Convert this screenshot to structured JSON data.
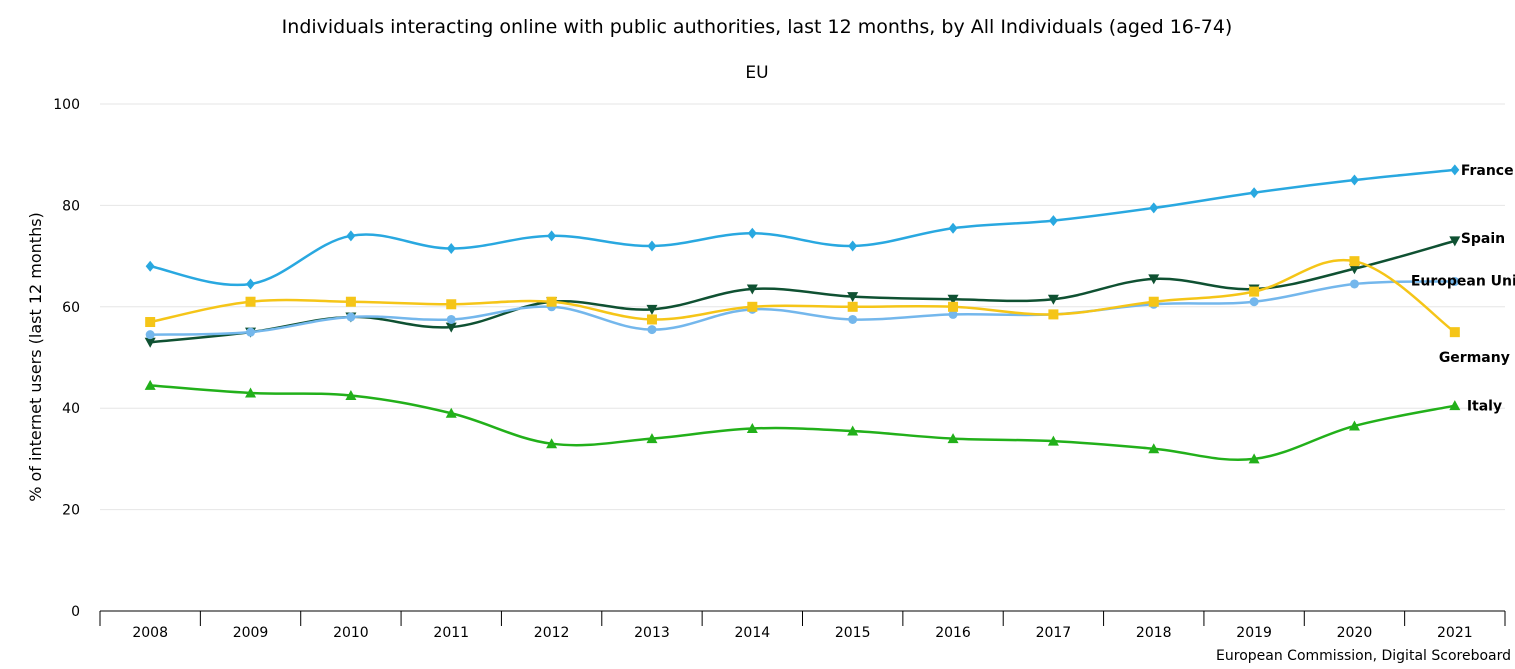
{
  "chart_data": {
    "type": "line",
    "title": "Individuals interacting online with public authorities, last 12 months, by All Individuals (aged 16-74)",
    "subtitle": "EU",
    "xlabel": "",
    "ylabel": "% of internet users (last 12 months)",
    "ylim": [
      0,
      100
    ],
    "yticks": [
      0,
      20,
      40,
      60,
      80,
      100
    ],
    "categories": [
      "2008",
      "2009",
      "2010",
      "2011",
      "2012",
      "2013",
      "2014",
      "2015",
      "2016",
      "2017",
      "2018",
      "2019",
      "2020",
      "2021"
    ],
    "grid": true,
    "series": [
      {
        "name": "France",
        "color": "#29a8e0",
        "marker": "diamond",
        "values": [
          68,
          64.5,
          74,
          71.5,
          74,
          72,
          74.5,
          72,
          75.5,
          77,
          79.5,
          82.5,
          85,
          87
        ]
      },
      {
        "name": "Spain",
        "color": "#0f5132",
        "marker": "triangle-down",
        "values": [
          53,
          55,
          58,
          56,
          61,
          59.5,
          63.5,
          62,
          61.5,
          61.5,
          65.5,
          63.5,
          67.5,
          73
        ]
      },
      {
        "name": "European Union",
        "color": "#74b7ec",
        "marker": "circle",
        "values": [
          54.5,
          55,
          58,
          57.5,
          60,
          55.5,
          59.5,
          57.5,
          58.5,
          58.5,
          60.5,
          61,
          64.5,
          65
        ]
      },
      {
        "name": "Germany",
        "color": "#f5c518",
        "marker": "square",
        "values": [
          57,
          61,
          61,
          60.5,
          61,
          57.5,
          60,
          60,
          60,
          58.5,
          61,
          63,
          69,
          55
        ]
      },
      {
        "name": "Italy",
        "color": "#22b01a",
        "marker": "triangle-up",
        "values": [
          44.5,
          43,
          42.5,
          39,
          33,
          34,
          36,
          35.5,
          34,
          33.5,
          32,
          30,
          36.5,
          40.5
        ]
      }
    ],
    "source": "European Commission, Digital Scoreboard"
  }
}
